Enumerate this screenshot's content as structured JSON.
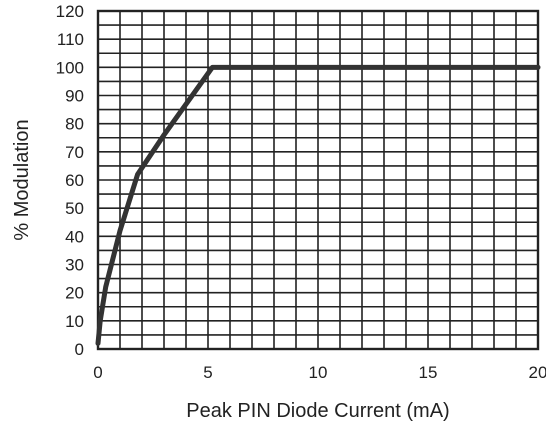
{
  "chart_data": {
    "type": "line",
    "title": "",
    "xlabel": "Peak PIN Diode Current (mA)",
    "ylabel": "% Modulation",
    "xlim": [
      0,
      20
    ],
    "ylim": [
      0,
      120
    ],
    "x_ticks": [
      "0",
      "5",
      "10",
      "15",
      "20"
    ],
    "y_ticks": [
      "0",
      "10",
      "20",
      "30",
      "40",
      "50",
      "60",
      "70",
      "80",
      "90",
      "100",
      "110",
      "120"
    ],
    "grid": true,
    "minor_x_step": 1,
    "minor_y_step": 5,
    "series": [
      {
        "x": [
          0.0,
          0.1,
          0.35,
          1.0,
          1.8,
          3.0,
          5.2,
          20.0
        ],
        "y": [
          2,
          10,
          22,
          42,
          62,
          76,
          100,
          100
        ],
        "color": "#333333"
      }
    ]
  },
  "style": {
    "grid_color": "#222222",
    "axis_color": "#222222",
    "line_color": "#333333"
  }
}
